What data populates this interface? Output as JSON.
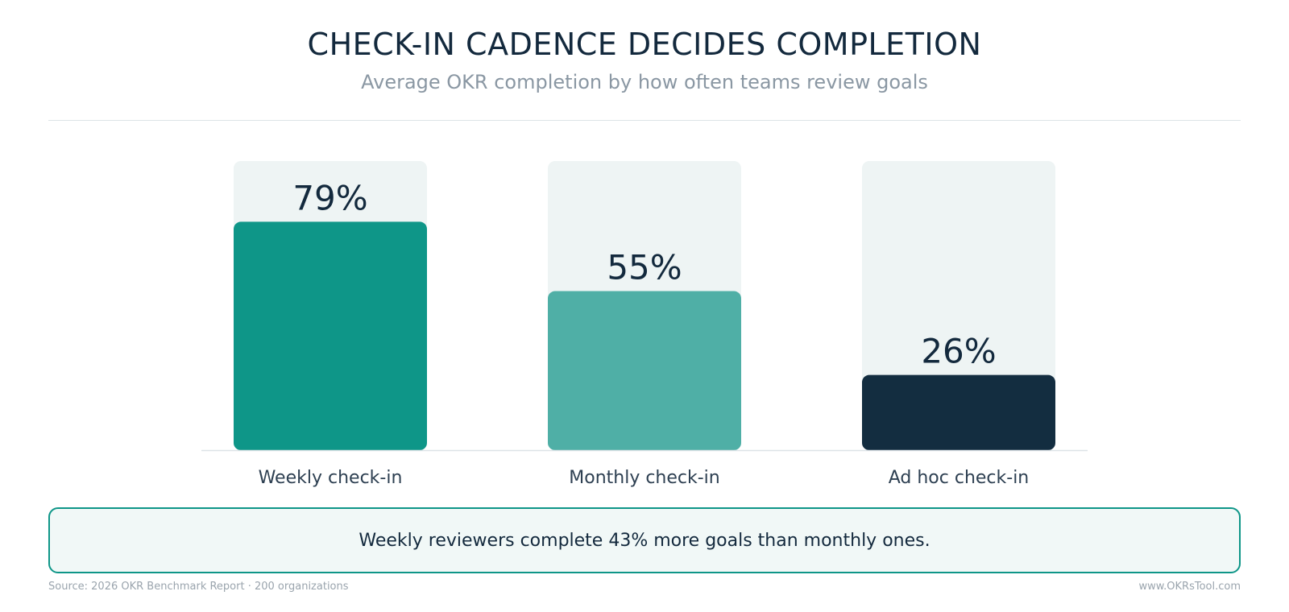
{
  "header": {
    "title": "CHECK-IN CADENCE DECIDES COMPLETION",
    "subtitle": "Average OKR completion by how often teams review goals"
  },
  "chart_data": {
    "type": "bar",
    "title": "CHECK-IN CADENCE DECIDES COMPLETION",
    "subtitle": "Average OKR completion by how often teams review goals",
    "categories": [
      "Weekly check-in",
      "Monthly check-in",
      "Ad hoc check-in"
    ],
    "values": [
      79,
      55,
      26
    ],
    "value_labels": [
      "79%",
      "55%",
      "26%"
    ],
    "ylim": [
      0,
      100
    ],
    "grid": false,
    "legend": "none",
    "colors": [
      "#0e9688",
      "#4fafa6",
      "#132d40"
    ],
    "track_color": "#eef4f4"
  },
  "callout": {
    "text": "Weekly reviewers complete 43% more goals than monthly ones."
  },
  "footer": {
    "source": "Source: 2026 OKR Benchmark Report · 200 organizations",
    "site": "www.OKRsTool.com"
  }
}
